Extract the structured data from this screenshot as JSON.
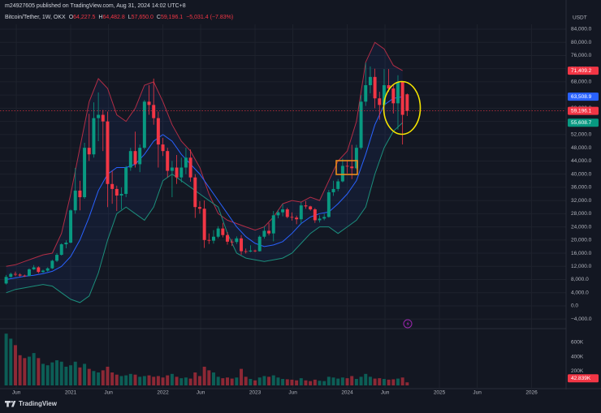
{
  "chart_data": {
    "type": "candlestick",
    "title": "m24927605 published on TradingView.com, Aug 31, 2024 14:02 UTC+8",
    "symbol": "Bitcoin/Tether, 1W, OKX",
    "ohlc_text": [
      {
        "key": "O",
        "value": "64,227.5"
      },
      {
        "key": "H",
        "value": "64,482.8"
      },
      {
        "key": "L",
        "value": "57,650.0"
      },
      {
        "key": "C",
        "value": "59,196.1"
      }
    ],
    "change": "−5,031.4 (−7.83%)",
    "currency": "USDT",
    "brand": "TradingView",
    "grid": true,
    "colors": {
      "up": "#089981",
      "down": "#f23645"
    },
    "x": [
      2020.3,
      2020.35,
      2020.4,
      2020.45,
      2020.5,
      2020.55,
      2020.6,
      2020.65,
      2020.7,
      2020.75,
      2020.8,
      2020.85,
      2020.9,
      2020.95,
      2021.0,
      2021.05,
      2021.1,
      2021.15,
      2021.2,
      2021.25,
      2021.3,
      2021.35,
      2021.4,
      2021.45,
      2021.5,
      2021.55,
      2021.6,
      2021.65,
      2021.7,
      2021.75,
      2021.8,
      2021.85,
      2021.9,
      2021.95,
      2022.0,
      2022.05,
      2022.1,
      2022.15,
      2022.2,
      2022.25,
      2022.3,
      2022.35,
      2022.4,
      2022.45,
      2022.5,
      2022.55,
      2022.6,
      2022.65,
      2022.7,
      2022.75,
      2022.8,
      2022.85,
      2022.9,
      2022.95,
      2023.0,
      2023.05,
      2023.1,
      2023.15,
      2023.2,
      2023.25,
      2023.3,
      2023.35,
      2023.4,
      2023.45,
      2023.5,
      2023.55,
      2023.6,
      2023.65,
      2023.7,
      2023.75,
      2023.8,
      2023.85,
      2023.9,
      2023.95,
      2024.0,
      2024.05,
      2024.1,
      2024.15,
      2024.2,
      2024.25,
      2024.3,
      2024.35,
      2024.4,
      2024.45,
      2024.5,
      2024.55,
      2024.6,
      2024.65
    ],
    "open": [
      6800,
      8800,
      9700,
      9500,
      9200,
      9100,
      11100,
      11700,
      10300,
      10700,
      11400,
      13700,
      15500,
      18700,
      19200,
      29000,
      35000,
      33000,
      48000,
      46000,
      57000,
      58000,
      56000,
      37000,
      35500,
      33500,
      34000,
      42000,
      47000,
      43000,
      48000,
      62000,
      61000,
      57000,
      49000,
      47000,
      41000,
      42000,
      39000,
      42000,
      45000,
      39000,
      30000,
      29500,
      20000,
      19800,
      21000,
      23500,
      21500,
      19500,
      19400,
      20500,
      16600,
      16500,
      16800,
      16600,
      21000,
      22800,
      22000,
      27500,
      28400,
      29300,
      27000,
      26800,
      26300,
      30500,
      30200,
      29300,
      26000,
      26500,
      27000,
      34500,
      35500,
      37800,
      42500,
      42300,
      41800,
      48000,
      62000,
      67000,
      69500,
      63000,
      61000,
      67000,
      66000,
      61500,
      68000,
      64227.5
    ],
    "high": [
      9400,
      10100,
      10400,
      9900,
      9500,
      11400,
      12400,
      12000,
      11000,
      11700,
      14000,
      16000,
      19000,
      19900,
      29300,
      41900,
      38000,
      49500,
      58300,
      61800,
      64800,
      59500,
      59000,
      41000,
      36500,
      36000,
      42500,
      48000,
      52900,
      49000,
      62500,
      67000,
      69000,
      59000,
      51000,
      48000,
      44000,
      45800,
      45000,
      48000,
      47500,
      40000,
      31800,
      32000,
      22000,
      23000,
      24200,
      25200,
      22400,
      20300,
      21100,
      21500,
      17400,
      18400,
      17100,
      21400,
      24200,
      25200,
      28800,
      29200,
      31000,
      29800,
      28400,
      27400,
      31400,
      31800,
      30400,
      29700,
      27500,
      28000,
      35200,
      38000,
      38500,
      44700,
      44200,
      48900,
      48900,
      64000,
      73800,
      72700,
      72000,
      65000,
      71900,
      71900,
      67200,
      70000,
      68000,
      64482.8
    ],
    "low": [
      6500,
      8500,
      9000,
      8900,
      8800,
      9000,
      10900,
      9900,
      10000,
      10400,
      11200,
      13300,
      15300,
      17500,
      19000,
      28000,
      29000,
      32500,
      44000,
      45000,
      50000,
      47000,
      30000,
      31000,
      28800,
      29300,
      33000,
      41000,
      42000,
      40600,
      47500,
      58000,
      55000,
      42000,
      45500,
      39000,
      33000,
      37000,
      37500,
      40000,
      37700,
      26700,
      28000,
      17600,
      18800,
      18900,
      20500,
      20800,
      18600,
      18200,
      18800,
      15500,
      15900,
      16300,
      16300,
      16500,
      20400,
      21400,
      19600,
      26600,
      27200,
      26600,
      25900,
      24800,
      25000,
      29500,
      28900,
      25200,
      25300,
      26000,
      26800,
      33400,
      34800,
      37500,
      40200,
      38500,
      41500,
      47500,
      60700,
      64500,
      60000,
      56500,
      60800,
      65000,
      58400,
      53500,
      49000,
      57650.0
    ],
    "close": [
      8800,
      9700,
      9500,
      9200,
      9100,
      11100,
      11700,
      10300,
      10700,
      11400,
      13700,
      15500,
      18700,
      19200,
      29000,
      35000,
      33000,
      48000,
      46000,
      57000,
      58000,
      56000,
      37000,
      35500,
      33500,
      34000,
      42000,
      47000,
      43000,
      48000,
      62000,
      61000,
      57000,
      49000,
      47000,
      41000,
      42000,
      39000,
      42000,
      45000,
      39000,
      30000,
      29500,
      20000,
      19800,
      21000,
      23500,
      21500,
      19500,
      19400,
      20500,
      16600,
      16500,
      16800,
      16600,
      21000,
      22800,
      22000,
      27500,
      28400,
      29300,
      27000,
      26800,
      26300,
      30500,
      30200,
      29300,
      26000,
      26500,
      27000,
      34500,
      35500,
      37800,
      42500,
      42300,
      41800,
      48000,
      62000,
      67000,
      69500,
      63000,
      61000,
      67000,
      66000,
      61500,
      68000,
      58000,
      59196.1
    ],
    "close_label": "59,196.1",
    "xlim": [
      2020.233,
      2026.374
    ],
    "xticks": [
      {
        "value": 2020.41,
        "label": "Jun"
      },
      2021,
      {
        "value": 2021.41,
        "label": "Jun"
      },
      2022,
      {
        "value": 2022.41,
        "label": "Jun"
      },
      2023,
      {
        "value": 2023.41,
        "label": "Jun"
      },
      2024,
      {
        "value": 2024.41,
        "label": "Jun"
      },
      2025,
      {
        "value": 2025.41,
        "label": "Jun"
      },
      2026
    ],
    "ylim": [
      -5665,
      85470
    ],
    "yticks": [
      {
        "value": -4000,
        "label": "−4,000.0"
      },
      {
        "value": 0,
        "label": "0.0"
      },
      {
        "value": 4000,
        "label": "4,000.0"
      },
      {
        "value": 8000,
        "label": "8,000.0"
      },
      {
        "value": 12000,
        "label": "12,000.0"
      },
      {
        "value": 16000,
        "label": "16,000.0"
      },
      {
        "value": 20000,
        "label": "20,000.0"
      },
      {
        "value": 24000,
        "label": "24,000.0"
      },
      {
        "value": 28000,
        "label": "28,000.0"
      },
      {
        "value": 32000,
        "label": "32,000.0"
      },
      {
        "value": 36000,
        "label": "36,000.0"
      },
      {
        "value": 40000,
        "label": "40,000.0"
      },
      {
        "value": 44000,
        "label": "44,000.0"
      },
      {
        "value": 48000,
        "label": "48,000.0"
      },
      {
        "value": 52000,
        "label": "52,000.0"
      },
      {
        "value": 56000,
        "label": "56,000.0"
      },
      {
        "value": 60000,
        "label": "60,000.0"
      },
      {
        "value": 64000,
        "label": "64,000.0"
      },
      {
        "value": 68000,
        "label": "68,000.0"
      },
      {
        "value": 72000,
        "label": "72,000.0"
      },
      {
        "value": 76000,
        "label": "76,000.0"
      },
      {
        "value": 80000,
        "label": "80,000.0"
      },
      {
        "value": 84000,
        "label": "84,000.0"
      }
    ],
    "bands": {
      "x": [
        2020.3,
        2020.4,
        2020.5,
        2020.6,
        2020.7,
        2020.8,
        2020.9,
        2021.0,
        2021.1,
        2021.2,
        2021.3,
        2021.4,
        2021.5,
        2021.6,
        2021.7,
        2021.8,
        2021.9,
        2022.0,
        2022.1,
        2022.2,
        2022.3,
        2022.4,
        2022.5,
        2022.6,
        2022.7,
        2022.8,
        2022.9,
        2023.0,
        2023.1,
        2023.2,
        2023.3,
        2023.4,
        2023.5,
        2023.6,
        2023.7,
        2023.8,
        2023.9,
        2024.0,
        2024.1,
        2024.2,
        2024.3,
        2024.4,
        2024.5,
        2024.6
      ],
      "upper": {
        "color": "#b22d45",
        "tag_color": "#f23645",
        "last_label": "71,409.2",
        "values": [
          12000,
          12500,
          13500,
          14500,
          15500,
          16000,
          22000,
          34000,
          48000,
          62000,
          69000,
          66000,
          58000,
          56000,
          60000,
          67000,
          68000,
          62000,
          55000,
          50000,
          47000,
          42000,
          34000,
          28000,
          26000,
          25000,
          24000,
          23000,
          24000,
          27000,
          31000,
          32000,
          31500,
          33000,
          32000,
          38000,
          44000,
          47000,
          56000,
          74000,
          80000,
          78000,
          73000,
          71409.2
        ]
      },
      "middle": {
        "color": "#2962ff",
        "tag_color": "#2962ff",
        "last_label": "63,508.9",
        "values": [
          8000,
          8500,
          9000,
          9300,
          9800,
          10500,
          12000,
          15000,
          20000,
          27000,
          35000,
          40000,
          42000,
          42000,
          43000,
          46000,
          50000,
          52000,
          50000,
          46000,
          43000,
          40000,
          36000,
          32000,
          28000,
          24000,
          21000,
          19000,
          18000,
          18500,
          19500,
          22000,
          25000,
          27000,
          28000,
          28500,
          31000,
          34000,
          38000,
          46000,
          55000,
          61000,
          63000,
          63508.9
        ]
      },
      "lower": {
        "color": "#1c8f7c",
        "tag_color": "#089981",
        "last_label": "55,608.7",
        "values": [
          4000,
          5000,
          5500,
          6000,
          6500,
          6000,
          4000,
          2000,
          1000,
          3000,
          10000,
          20000,
          28000,
          30000,
          28000,
          26000,
          30000,
          38000,
          40000,
          38000,
          36000,
          34000,
          32000,
          30000,
          22000,
          16000,
          14500,
          14000,
          13500,
          14000,
          14500,
          16000,
          19000,
          22000,
          24000,
          24000,
          22000,
          24000,
          26000,
          30000,
          40000,
          48000,
          53000,
          55608.7
        ]
      }
    },
    "volume": {
      "ylim": [
        0,
        790000
      ],
      "yticks": [
        {
          "value": 200000,
          "label": "200K"
        },
        {
          "value": 400000,
          "label": "400K"
        },
        {
          "value": 600000,
          "label": "600K"
        }
      ],
      "last_label": "42.839K",
      "values": [
        720000,
        650000,
        560000,
        420000,
        380000,
        400000,
        450000,
        380000,
        300000,
        280000,
        320000,
        350000,
        330000,
        260000,
        280000,
        330000,
        250000,
        300000,
        230000,
        200000,
        180000,
        210000,
        260000,
        180000,
        150000,
        130000,
        140000,
        160000,
        150000,
        120000,
        130000,
        140000,
        120000,
        130000,
        110000,
        140000,
        160000,
        120000,
        100000,
        110000,
        95000,
        180000,
        130000,
        260000,
        210000,
        180000,
        120000,
        100000,
        110000,
        95000,
        110000,
        230000,
        120000,
        90000,
        70000,
        110000,
        130000,
        120000,
        140000,
        110000,
        90000,
        85000,
        80000,
        70000,
        100000,
        70000,
        60000,
        80000,
        65000,
        60000,
        120000,
        110000,
        95000,
        110000,
        100000,
        130000,
        90000,
        120000,
        160000,
        120000,
        95000,
        100000,
        90000,
        80000,
        85000,
        95000,
        110000,
        42839
      ]
    }
  }
}
